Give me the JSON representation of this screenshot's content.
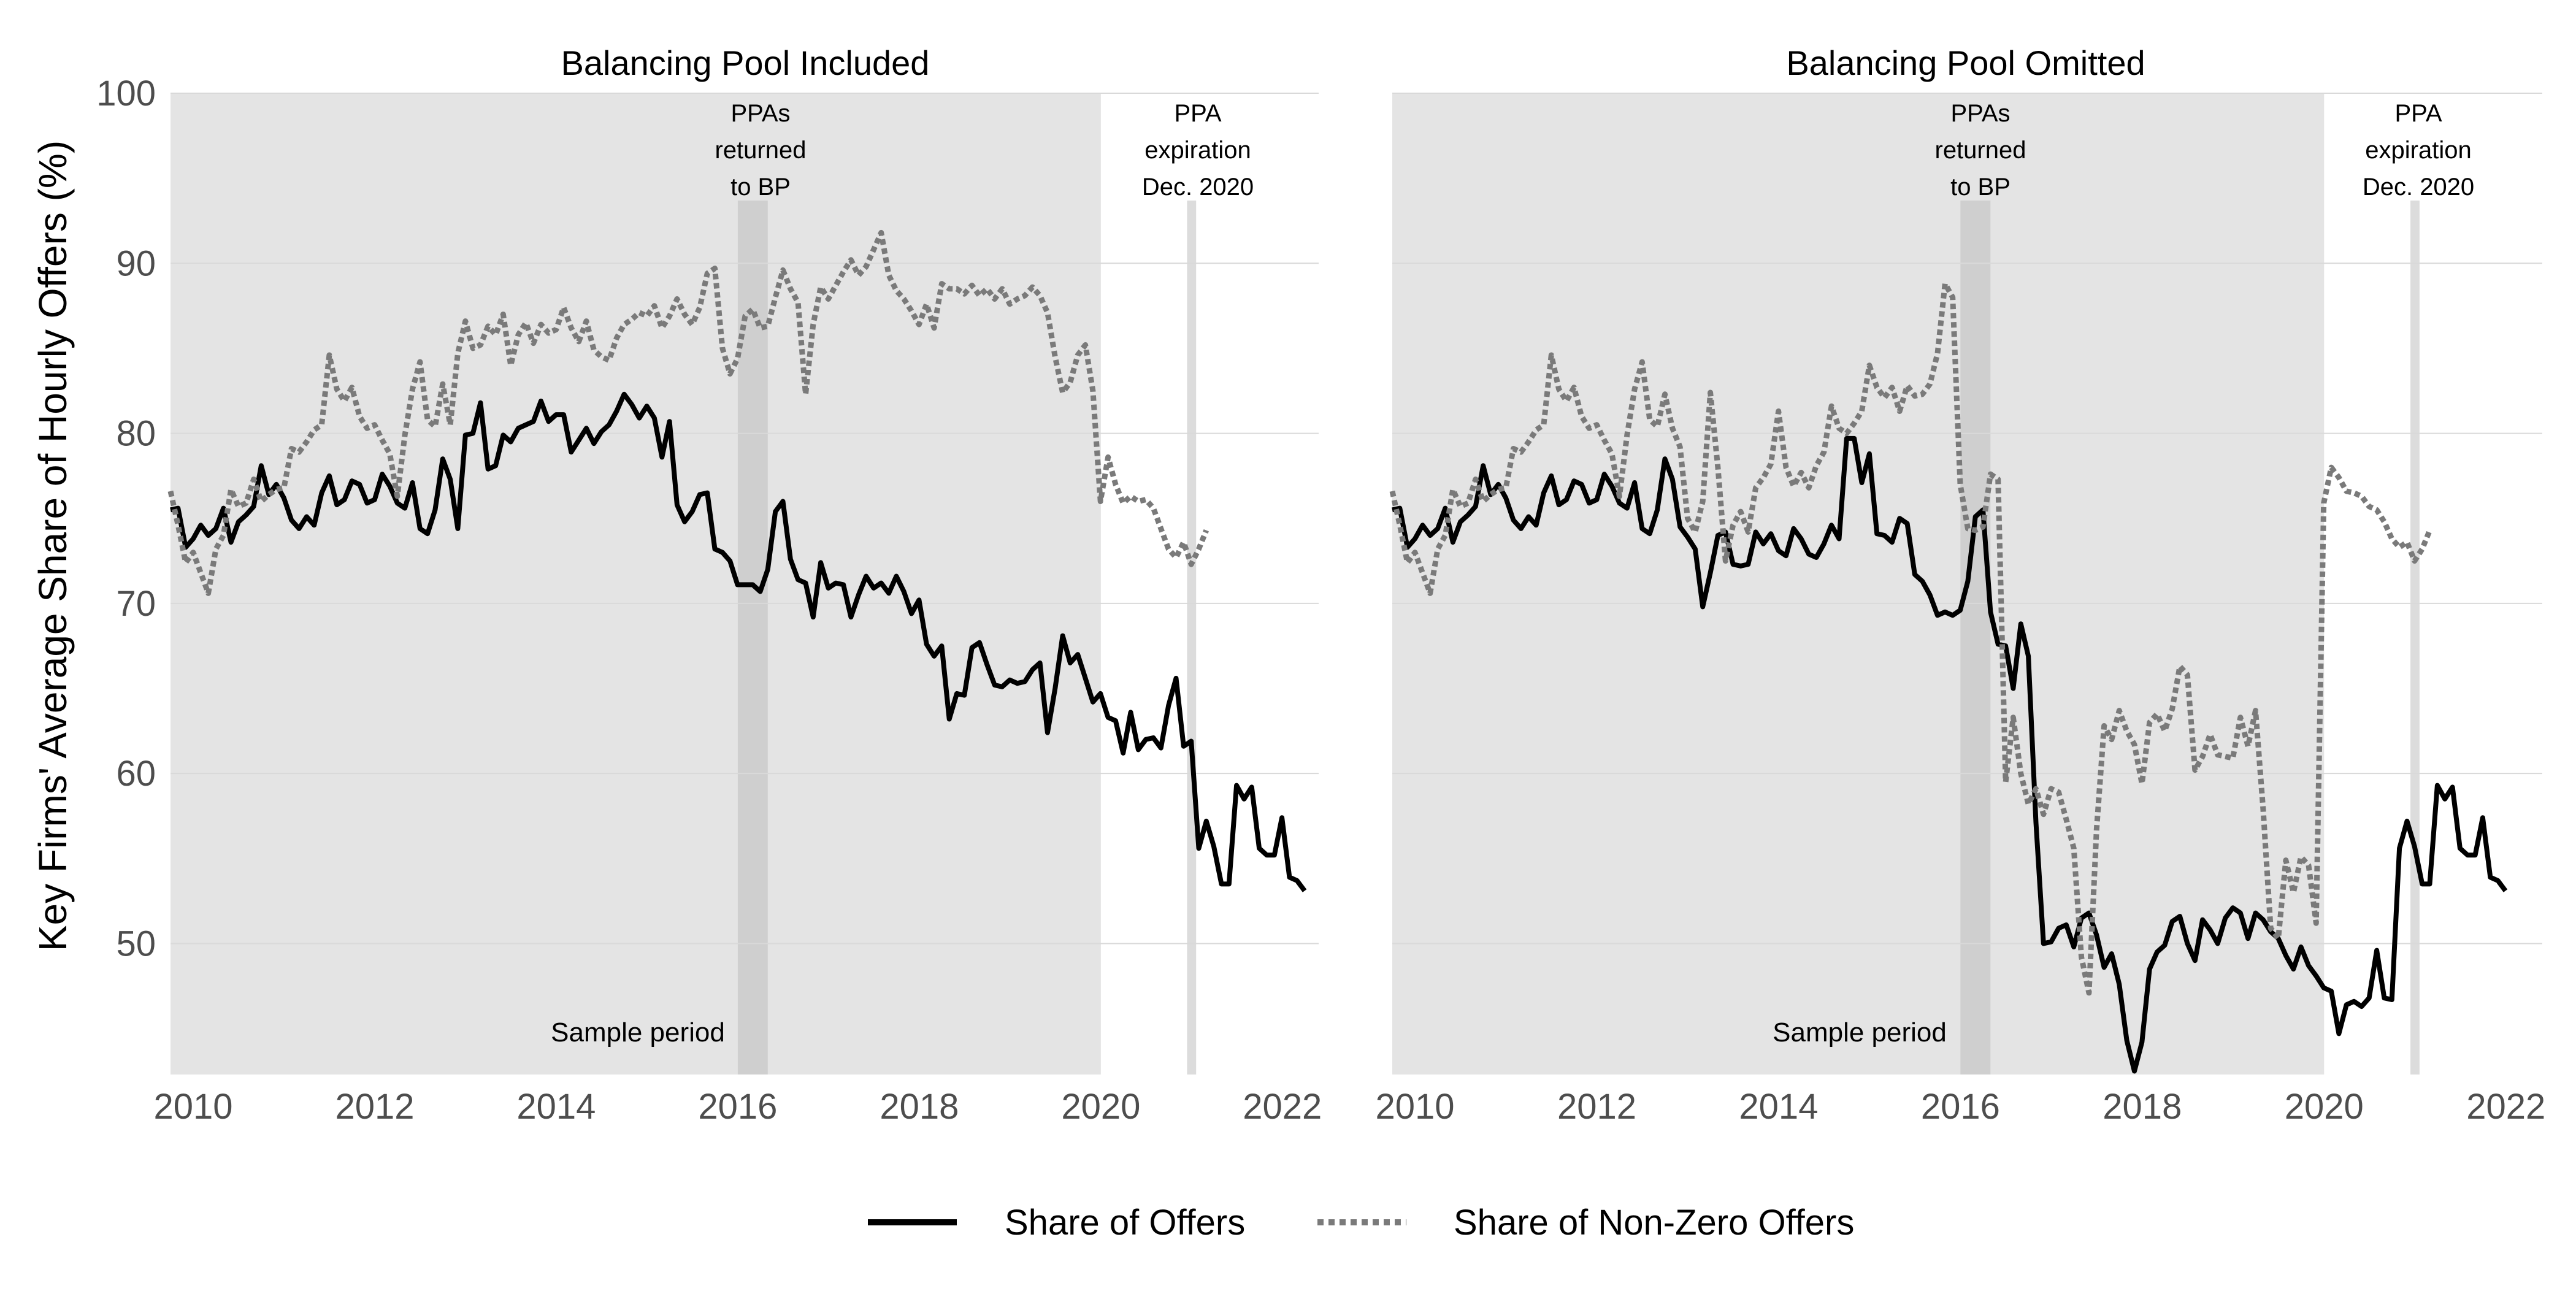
{
  "figure": {
    "ylabel": "Key Firms' Average Share of Hourly Offers  (%)",
    "legend": {
      "position": "bottom",
      "items": [
        {
          "label": "Share of Offers",
          "style": "solid",
          "color": "#000000"
        },
        {
          "label": "Share of Non-Zero Offers",
          "style": "dotted",
          "color": "#7a7a7a"
        }
      ]
    },
    "colors": {
      "panel_background": "#e4e4e4",
      "ppa_band": "#cfcfcf",
      "gridline": "#d9d9d9",
      "offers_line": "#000000",
      "nonzero_line": "#7a7a7a",
      "axis_text": "#4d4d4d"
    }
  },
  "chart_data": [
    {
      "type": "line",
      "title": "Balancing Pool Included",
      "xlabel": "",
      "ylabel": "Key Firms' Average Share of Hourly Offers  (%)",
      "xlim": [
        2009.75,
        2022.4
      ],
      "ylim": [
        42.3,
        100
      ],
      "x_ticks": [
        2010,
        2012,
        2014,
        2016,
        2018,
        2020,
        2022
      ],
      "y_ticks": [
        50,
        60,
        70,
        80,
        90,
        100
      ],
      "grid": true,
      "annotations": [
        {
          "type": "shaded_region",
          "x_range": [
            2009.75,
            2020.0
          ],
          "label": "Sample period"
        },
        {
          "type": "band",
          "x_range": [
            2016.0,
            2016.33
          ],
          "label": [
            "PPAs",
            "returned",
            "to BP"
          ]
        },
        {
          "type": "band",
          "x_range": [
            2020.95,
            2021.05
          ],
          "label": [
            "PPA",
            "expiration",
            "Dec. 2020"
          ]
        }
      ],
      "x_start": 2009.75,
      "x_step": 0.0833,
      "series": [
        {
          "name": "Share of Offers",
          "style": "solid",
          "values": [
            75.5,
            75.6,
            73.3,
            73.8,
            74.6,
            74.0,
            74.4,
            75.6,
            73.6,
            74.8,
            75.2,
            75.7,
            78.1,
            76.4,
            77.0,
            76.2,
            74.9,
            74.4,
            75.1,
            74.6,
            76.5,
            77.5,
            75.8,
            76.1,
            77.2,
            77.0,
            75.9,
            76.1,
            77.6,
            76.9,
            75.9,
            75.6,
            77.1,
            74.4,
            74.1,
            75.5,
            78.5,
            77.3,
            74.4,
            79.9,
            80.0,
            81.8,
            77.9,
            78.1,
            79.9,
            79.5,
            80.3,
            80.5,
            80.7,
            81.9,
            80.7,
            81.1,
            81.1,
            78.9,
            79.6,
            80.3,
            79.4,
            80.1,
            80.5,
            81.3,
            82.3,
            81.7,
            80.9,
            81.6,
            80.9,
            78.6,
            80.7,
            75.8,
            74.8,
            75.4,
            76.4,
            76.5,
            73.2,
            73.0,
            72.5,
            71.1,
            71.1,
            71.1,
            70.7,
            72.0,
            75.4,
            76.0,
            72.6,
            71.4,
            71.2,
            69.2,
            72.4,
            70.9,
            71.2,
            71.1,
            69.2,
            70.5,
            71.6,
            70.9,
            71.2,
            70.6,
            71.6,
            70.7,
            69.4,
            70.2,
            67.6,
            66.9,
            67.5,
            63.2,
            64.7,
            64.6,
            67.4,
            67.7,
            66.4,
            65.2,
            65.1,
            65.5,
            65.3,
            65.4,
            66.1,
            66.5,
            62.4,
            65.0,
            68.1,
            66.5,
            67.0,
            65.6,
            64.2,
            64.7,
            63.3,
            63.1,
            61.2,
            63.6,
            61.4,
            62.0,
            62.1,
            61.5,
            64.0,
            65.6,
            61.6,
            61.9,
            55.6,
            57.2,
            55.7,
            53.5,
            53.5,
            59.3,
            58.5,
            59.2,
            55.6,
            55.2,
            55.2,
            57.4,
            53.9,
            53.7,
            53.1
          ]
        },
        {
          "name": "Share of Non-Zero Offers",
          "style": "dotted",
          "values": [
            76.6,
            74.6,
            72.4,
            73.0,
            71.8,
            70.6,
            73.2,
            74.0,
            76.7,
            75.7,
            75.9,
            77.3,
            76.0,
            76.4,
            76.7,
            76.8,
            79.1,
            78.9,
            79.5,
            80.2,
            80.5,
            84.6,
            82.6,
            81.9,
            82.7,
            81.0,
            80.3,
            80.5,
            79.6,
            78.8,
            76.3,
            79.9,
            82.6,
            84.2,
            80.8,
            80.4,
            82.9,
            80.5,
            84.7,
            86.6,
            85.0,
            85.2,
            86.3,
            85.8,
            87.0,
            84.0,
            85.8,
            86.5,
            85.3,
            86.4,
            85.9,
            86.1,
            87.4,
            86.2,
            85.4,
            86.6,
            84.9,
            84.5,
            84.3,
            85.6,
            86.4,
            86.7,
            87.1,
            86.9,
            87.5,
            86.2,
            86.9,
            87.9,
            87.0,
            86.4,
            87.4,
            89.4,
            89.7,
            85.0,
            83.5,
            84.4,
            86.9,
            87.3,
            86.2,
            86.3,
            88.0,
            89.6,
            88.5,
            87.7,
            82.3,
            86.4,
            88.6,
            87.9,
            88.7,
            89.5,
            90.2,
            89.3,
            89.8,
            90.8,
            91.8,
            89.3,
            88.4,
            87.9,
            87.2,
            86.4,
            87.6,
            86.2,
            88.8,
            88.5,
            88.5,
            88.2,
            88.7,
            88.1,
            88.5,
            87.9,
            88.5,
            87.6,
            87.9,
            88.1,
            88.6,
            88.1,
            87.1,
            84.5,
            82.4,
            83.0,
            84.6,
            85.2,
            82.5,
            76.0,
            78.6,
            77.0,
            75.9,
            76.3,
            76.0,
            76.1,
            75.6,
            74.4,
            73.2,
            72.7,
            73.6,
            72.3,
            73.2,
            74.3
          ]
        }
      ]
    },
    {
      "type": "line",
      "title": "Balancing Pool Omitted",
      "xlabel": "",
      "ylabel": "",
      "xlim": [
        2009.75,
        2022.4
      ],
      "ylim": [
        42.3,
        100
      ],
      "x_ticks": [
        2010,
        2012,
        2014,
        2016,
        2018,
        2020,
        2022
      ],
      "y_ticks": [
        50,
        60,
        70,
        80,
        90,
        100
      ],
      "grid": true,
      "annotations": [
        {
          "type": "shaded_region",
          "x_range": [
            2009.75,
            2020.0
          ],
          "label": "Sample period"
        },
        {
          "type": "band",
          "x_range": [
            2016.0,
            2016.33
          ],
          "label": [
            "PPAs",
            "returned",
            "to BP"
          ]
        },
        {
          "type": "band",
          "x_range": [
            2020.95,
            2021.05
          ],
          "label": [
            "PPA",
            "expiration",
            "Dec. 2020"
          ]
        }
      ],
      "x_start": 2009.75,
      "x_step": 0.0833,
      "series": [
        {
          "name": "Share of Offers",
          "style": "solid",
          "values": [
            75.5,
            75.6,
            73.3,
            73.8,
            74.6,
            74.0,
            74.4,
            75.6,
            73.6,
            74.8,
            75.2,
            75.7,
            78.1,
            76.4,
            77.0,
            76.2,
            74.9,
            74.4,
            75.1,
            74.6,
            76.5,
            77.5,
            75.8,
            76.1,
            77.2,
            77.0,
            75.9,
            76.1,
            77.6,
            76.9,
            75.9,
            75.6,
            77.1,
            74.4,
            74.1,
            75.5,
            78.5,
            77.3,
            74.5,
            73.9,
            73.2,
            69.8,
            71.8,
            74.0,
            74.2,
            72.3,
            72.2,
            72.3,
            74.2,
            73.5,
            74.1,
            73.1,
            72.8,
            74.4,
            73.8,
            72.9,
            72.7,
            73.5,
            74.6,
            73.8,
            79.7,
            79.7,
            77.1,
            78.8,
            74.1,
            74.0,
            73.6,
            75.0,
            74.7,
            71.7,
            71.3,
            70.5,
            69.3,
            69.5,
            69.3,
            69.6,
            71.3,
            75.1,
            75.5,
            69.5,
            67.6,
            67.5,
            65.0,
            68.8,
            66.9,
            57.1,
            50.0,
            50.1,
            50.9,
            51.1,
            49.8,
            51.5,
            51.8,
            50.5,
            48.6,
            49.4,
            47.6,
            44.3,
            42.5,
            44.2,
            48.5,
            49.5,
            49.9,
            51.3,
            51.6,
            50.0,
            49.0,
            51.4,
            50.8,
            50.0,
            51.5,
            52.1,
            51.8,
            50.3,
            51.8,
            51.4,
            50.7,
            50.3,
            49.3,
            48.5,
            49.8,
            48.7,
            48.1,
            47.4,
            47.2,
            44.7,
            46.4,
            46.6,
            46.3,
            46.8,
            49.6,
            46.8,
            46.7,
            55.6,
            57.2,
            55.7,
            53.5,
            53.5,
            59.3,
            58.5,
            59.2,
            55.6,
            55.2,
            55.2,
            57.4,
            53.9,
            53.7,
            53.1
          ]
        },
        {
          "name": "Share of Non-Zero Offers",
          "style": "dotted",
          "values": [
            76.6,
            74.6,
            72.4,
            73.0,
            71.8,
            70.6,
            73.2,
            74.0,
            76.7,
            75.7,
            75.9,
            77.3,
            76.0,
            76.4,
            76.7,
            76.8,
            79.1,
            78.9,
            79.5,
            80.2,
            80.5,
            84.6,
            82.6,
            81.9,
            82.7,
            81.0,
            80.3,
            80.5,
            79.6,
            78.8,
            76.3,
            79.9,
            82.6,
            84.2,
            80.8,
            80.4,
            82.3,
            80.3,
            79.2,
            75.0,
            74.2,
            76.0,
            82.4,
            78.0,
            72.5,
            74.6,
            75.4,
            74.2,
            76.8,
            77.4,
            78.2,
            81.3,
            78.0,
            76.9,
            77.7,
            76.8,
            78.1,
            78.9,
            81.6,
            80.3,
            80.0,
            80.6,
            81.3,
            84.0,
            82.7,
            82.1,
            82.7,
            81.3,
            82.8,
            82.2,
            82.3,
            82.9,
            84.7,
            88.8,
            88.0,
            77.0,
            74.4,
            74.3,
            74.5,
            77.6,
            77.3,
            59.5,
            63.3,
            60.0,
            58.2,
            59.1,
            57.6,
            59.1,
            58.9,
            57.3,
            55.6,
            49.2,
            47.1,
            56.7,
            62.8,
            62.0,
            63.7,
            62.5,
            61.7,
            59.4,
            63.0,
            63.5,
            62.5,
            63.8,
            66.3,
            65.8,
            60.2,
            61.0,
            62.3,
            61.1,
            61.0,
            60.9,
            63.3,
            61.6,
            63.7,
            57.9,
            50.9,
            50.3,
            54.9,
            53.0,
            55.1,
            54.6,
            51.2,
            75.9,
            78.0,
            77.4,
            76.6,
            76.5,
            76.3,
            75.7,
            75.5,
            74.8,
            73.8,
            73.3,
            73.6,
            72.5,
            73.2,
            74.3
          ]
        }
      ]
    }
  ]
}
